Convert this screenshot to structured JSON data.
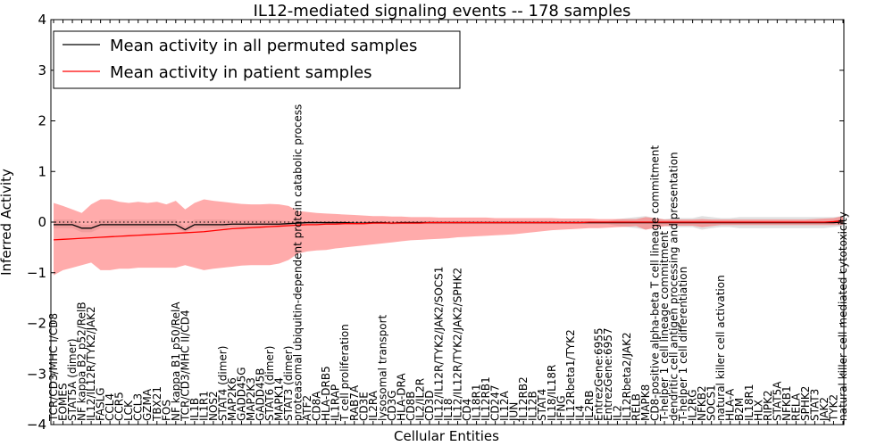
{
  "chart_data": {
    "type": "line",
    "title": "IL12-mediated signaling events -- 178 samples",
    "xlabel": "Cellular Entities",
    "ylabel": "Inferred Activity",
    "ylim": [
      -4,
      4
    ],
    "yticks": [
      -4,
      -3,
      -2,
      -1,
      0,
      1,
      2,
      3,
      4
    ],
    "legend_position": "top-left",
    "categories": [
      "TCR/CD3/MHC I/CD8",
      "EOMES",
      "STAT5A (dimer)",
      "NF kappa B2 p52/RelB",
      "IL12/IL12R/TYK2/JAK2",
      "FASLG",
      "CCL4",
      "CCR5",
      "LCK",
      "CCL3",
      "GZMA",
      "TBX21",
      "FOS",
      "NF kappa B1 p50/RelA",
      "TCR/CD3/MHC II/CD4",
      "IL1B",
      "IL1R1",
      "NOS2",
      "STAT4 (dimer)",
      "MAP2K6",
      "GADD45G",
      "MAP2K3",
      "GADD45B",
      "STAT6 (dimer)",
      "MAPK14",
      "STAT3 (dimer)",
      "proteasomal ubiquitin-dependent protein catabolic process",
      "ATF2",
      "CD8A",
      "HLA-DRB5",
      "IL1RAP",
      "T cell proliferation",
      "RAB7A",
      "CD3E",
      "IL2RA",
      "lysosomal transport",
      "CD3G",
      "HLA-DRA",
      "CD8B",
      "IL2/IL2R",
      "CD3D",
      "IL12/IL12R/TYK2/JAK2/SOCS1",
      "IL18",
      "IL12/IL12R/TYK2/JAK2/SPHK2",
      "CD4",
      "IL18R1",
      "IL12RB1",
      "CD247",
      "IL12A",
      "JUN",
      "IL12RB2",
      "IL12B",
      "STAT4",
      "IL18/IL18R",
      "IFNG",
      "IL12Rbeta1/TYK2",
      "IL4",
      "IL2RB",
      "EntrezGene:6955",
      "EntrezGene:6957",
      "IL2",
      "IL12Rbeta2/JAK2",
      "RELB",
      "MAPK8",
      "CD8-positive alpha-beta T cell lineage commitment",
      "T-helper 1 cell lineage commitment",
      "dendritic cell antigen processing and presentation",
      "T-helper 1 cell differentiation",
      "IL2RG",
      "NFKB2",
      "SOCS1",
      "natural killer cell activation",
      "HLA-A",
      "B2M",
      "IL18R1",
      "HLX",
      "RIPK2",
      "STAT5A",
      "NFKB1",
      "RELA",
      "SPHK2",
      "STAT3",
      "JAK2",
      "TYK2",
      "natural killer cell mediated cytotoxicity"
    ],
    "series": [
      {
        "name": "Mean activity in all permuted samples",
        "color": "#000000",
        "values": [
          -0.05,
          -0.05,
          -0.05,
          -0.12,
          -0.12,
          -0.05,
          -0.05,
          -0.05,
          -0.05,
          -0.05,
          -0.05,
          -0.05,
          -0.05,
          -0.05,
          -0.15,
          -0.05,
          -0.05,
          -0.05,
          -0.05,
          -0.04,
          -0.04,
          -0.04,
          -0.04,
          -0.04,
          -0.04,
          -0.03,
          -0.02,
          -0.01,
          -0.01,
          -0.01,
          -0.01,
          -0.01,
          -0.02,
          -0.02,
          -0.01,
          -0.01,
          -0.02,
          -0.01,
          -0.01,
          -0.01,
          -0.01,
          -0.01,
          -0.01,
          -0.01,
          -0.01,
          -0.01,
          -0.01,
          -0.01,
          -0.01,
          -0.01,
          -0.01,
          -0.01,
          -0.01,
          -0.01,
          -0.01,
          -0.01,
          -0.01,
          -0.01,
          -0.01,
          -0.01,
          -0.01,
          -0.01,
          -0.01,
          -0.01,
          -0.01,
          -0.01,
          -0.01,
          -0.01,
          -0.01,
          -0.01,
          -0.01,
          -0.01,
          -0.01,
          -0.01,
          -0.01,
          -0.01,
          -0.01,
          -0.01,
          -0.01,
          -0.01,
          -0.01,
          -0.01,
          -0.01,
          -0.01,
          0.0
        ]
      },
      {
        "name": "Mean activity in patient samples",
        "color": "#ff0000",
        "values": [
          -0.35,
          -0.34,
          -0.33,
          -0.32,
          -0.31,
          -0.3,
          -0.29,
          -0.28,
          -0.27,
          -0.26,
          -0.25,
          -0.24,
          -0.23,
          -0.22,
          -0.21,
          -0.2,
          -0.19,
          -0.17,
          -0.15,
          -0.13,
          -0.12,
          -0.11,
          -0.1,
          -0.09,
          -0.08,
          -0.07,
          -0.06,
          -0.05,
          -0.05,
          -0.04,
          -0.04,
          -0.03,
          -0.03,
          -0.03,
          -0.02,
          -0.02,
          -0.02,
          -0.02,
          -0.02,
          -0.02,
          -0.01,
          -0.01,
          -0.01,
          -0.01,
          -0.01,
          -0.01,
          -0.01,
          -0.01,
          -0.01,
          -0.01,
          -0.01,
          -0.01,
          -0.01,
          -0.01,
          -0.01,
          -0.01,
          -0.01,
          0.0,
          0.0,
          0.0,
          0.0,
          0.0,
          0.0,
          0.0,
          0.0,
          0.0,
          0.0,
          0.0,
          0.0,
          0.0,
          0.0,
          0.0,
          0.0,
          0.0,
          0.0,
          0.0,
          0.0,
          0.0,
          0.0,
          0.0,
          0.0,
          0.0,
          0.0,
          0.01,
          0.03
        ]
      }
    ],
    "bands": {
      "permuted": {
        "color": "#bbbbbb",
        "lower": [
          -0.12,
          -0.12,
          -0.12,
          -0.2,
          -0.2,
          -0.12,
          -0.12,
          -0.12,
          -0.12,
          -0.12,
          -0.12,
          -0.12,
          -0.12,
          -0.12,
          -0.2,
          -0.12,
          -0.12,
          -0.12,
          -0.12,
          -0.1,
          -0.1,
          -0.1,
          -0.1,
          -0.1,
          -0.1,
          -0.08,
          -0.05,
          -0.04,
          -0.04,
          -0.04,
          -0.04,
          -0.04,
          -0.05,
          -0.05,
          -0.04,
          -0.04,
          -0.05,
          -0.04,
          -0.04,
          -0.04,
          -0.04,
          -0.04,
          -0.04,
          -0.04,
          -0.04,
          -0.04,
          -0.04,
          -0.04,
          -0.04,
          -0.04,
          -0.04,
          -0.04,
          -0.04,
          -0.04,
          -0.04,
          -0.04,
          -0.04,
          -0.04,
          -0.04,
          -0.04,
          -0.08,
          -0.1,
          -0.12,
          -0.15,
          -0.1,
          -0.08,
          -0.1,
          -0.1,
          -0.1,
          -0.15,
          -0.12,
          -0.1,
          -0.1,
          -0.12,
          -0.12,
          -0.12,
          -0.12,
          -0.12,
          -0.12,
          -0.12,
          -0.12,
          -0.12,
          -0.12,
          -0.1,
          -0.08
        ],
        "upper": [
          0.05,
          0.05,
          0.05,
          -0.05,
          -0.05,
          0.05,
          0.05,
          0.05,
          0.05,
          0.05,
          0.05,
          0.05,
          0.05,
          0.05,
          -0.1,
          0.05,
          0.05,
          0.05,
          0.05,
          0.04,
          0.04,
          0.04,
          0.04,
          0.04,
          0.04,
          0.02,
          0.02,
          0.02,
          0.02,
          0.02,
          0.02,
          0.02,
          0.01,
          0.01,
          0.02,
          0.02,
          0.01,
          0.02,
          0.02,
          0.02,
          0.02,
          0.02,
          0.02,
          0.02,
          0.02,
          0.02,
          0.02,
          0.02,
          0.02,
          0.02,
          0.02,
          0.02,
          0.02,
          0.02,
          0.02,
          0.02,
          0.02,
          0.02,
          0.02,
          0.02,
          0.06,
          0.08,
          0.1,
          0.12,
          0.08,
          0.06,
          0.08,
          0.08,
          0.08,
          0.12,
          0.1,
          0.08,
          0.08,
          0.1,
          0.1,
          0.1,
          0.1,
          0.1,
          0.1,
          0.1,
          0.1,
          0.1,
          0.1,
          0.1,
          0.12
        ]
      },
      "patient": {
        "color": "#ff6666",
        "lower": [
          -1.05,
          -0.95,
          -0.9,
          -0.85,
          -0.8,
          -0.95,
          -0.95,
          -0.92,
          -0.92,
          -0.9,
          -0.9,
          -0.9,
          -0.9,
          -0.9,
          -0.85,
          -0.9,
          -0.95,
          -0.92,
          -0.9,
          -0.88,
          -0.86,
          -0.85,
          -0.85,
          -0.85,
          -0.82,
          -0.75,
          -0.62,
          -0.58,
          -0.56,
          -0.55,
          -0.52,
          -0.5,
          -0.48,
          -0.46,
          -0.44,
          -0.42,
          -0.4,
          -0.38,
          -0.36,
          -0.35,
          -0.34,
          -0.33,
          -0.32,
          -0.3,
          -0.29,
          -0.28,
          -0.27,
          -0.26,
          -0.25,
          -0.24,
          -0.22,
          -0.2,
          -0.18,
          -0.16,
          -0.15,
          -0.14,
          -0.13,
          -0.12,
          -0.12,
          -0.11,
          -0.1,
          -0.09,
          -0.08,
          -0.15,
          -0.12,
          -0.08,
          -0.07,
          -0.07,
          -0.07,
          -0.1,
          -0.08,
          -0.06,
          -0.06,
          -0.06,
          -0.06,
          -0.06,
          -0.06,
          -0.06,
          -0.06,
          -0.06,
          -0.06,
          -0.06,
          -0.06,
          -0.06,
          -0.05
        ],
        "upper": [
          0.38,
          0.32,
          0.25,
          0.18,
          0.35,
          0.45,
          0.45,
          0.4,
          0.38,
          0.4,
          0.38,
          0.4,
          0.35,
          0.42,
          0.25,
          0.38,
          0.45,
          0.42,
          0.4,
          0.38,
          0.36,
          0.35,
          0.35,
          0.36,
          0.35,
          0.32,
          0.22,
          0.2,
          0.18,
          0.17,
          0.16,
          0.15,
          0.14,
          0.13,
          0.12,
          0.12,
          0.11,
          0.11,
          0.1,
          0.1,
          0.1,
          0.09,
          0.09,
          0.09,
          0.09,
          0.09,
          0.09,
          0.08,
          0.08,
          0.08,
          0.08,
          0.08,
          0.08,
          0.08,
          0.07,
          0.07,
          0.07,
          0.07,
          0.06,
          0.06,
          0.06,
          0.06,
          0.06,
          0.1,
          0.08,
          0.05,
          0.05,
          0.05,
          0.05,
          0.06,
          0.05,
          0.05,
          0.05,
          0.05,
          0.05,
          0.05,
          0.05,
          0.05,
          0.05,
          0.05,
          0.05,
          0.06,
          0.07,
          0.08,
          0.12
        ]
      }
    },
    "baseline": {
      "value": 0,
      "style": "dotted"
    }
  }
}
